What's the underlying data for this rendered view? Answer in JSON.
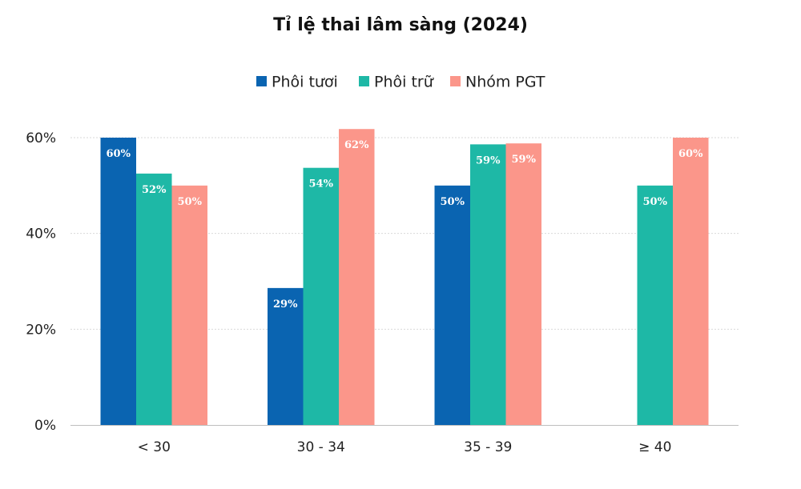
{
  "chart_data": {
    "type": "bar",
    "title": "Tỉ lệ thai lâm sàng (2024)",
    "categories": [
      "< 30",
      "30 - 34",
      "35 - 39",
      "≥ 40"
    ],
    "series": [
      {
        "name": "Phôi tươi",
        "color": "#0a64b1",
        "values": [
          60,
          28.6,
          50,
          null
        ],
        "labels": [
          "60%",
          "29%",
          "50%",
          null
        ]
      },
      {
        "name": "Phôi trữ",
        "color": "#1eb8a6",
        "values": [
          52.5,
          53.7,
          58.6,
          50
        ],
        "labels": [
          "52%",
          "54%",
          "59%",
          "50%"
        ]
      },
      {
        "name": "Nhóm PGT",
        "color": "#fb968a",
        "values": [
          50,
          61.8,
          58.8,
          60
        ],
        "labels": [
          "50%",
          "62%",
          "59%",
          "60%"
        ]
      }
    ],
    "yticks": [
      "0%",
      "20%",
      "40%",
      "60%"
    ],
    "ytick_values": [
      0,
      20,
      40,
      60
    ],
    "ylim": [
      0,
      60
    ],
    "xlabel": "",
    "ylabel": "",
    "legend_position": "top",
    "grid": true
  }
}
